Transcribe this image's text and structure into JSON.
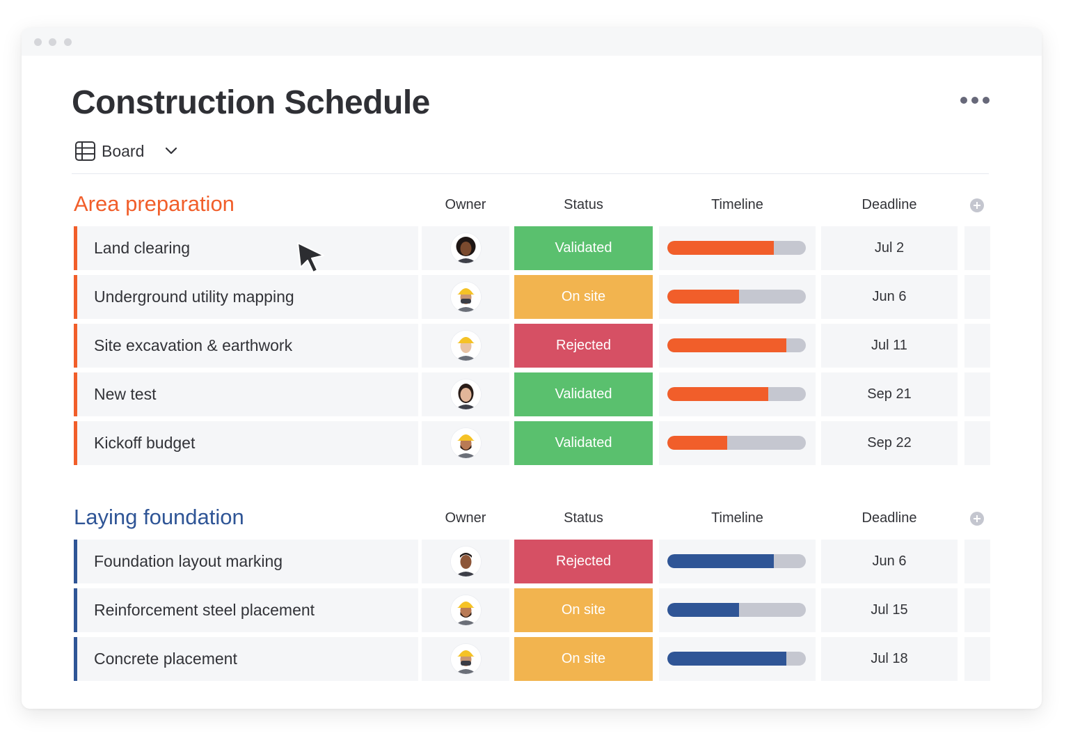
{
  "page": {
    "title": "Construction Schedule",
    "view": {
      "label": "Board",
      "icon": "table-icon"
    }
  },
  "colors": {
    "validated": "#5ac06e",
    "on_site": "#f2b44f",
    "rejected": "#d65064",
    "track": "#c5c7d0",
    "group_orange": "#f15e2a",
    "group_blue": "#2f5596",
    "row_bg": "#f5f6f8"
  },
  "groups": [
    {
      "title": "Area preparation",
      "accent": "#f15e2a",
      "columns": {
        "owner": "Owner",
        "status": "Status",
        "timeline": "Timeline",
        "deadline": "Deadline"
      },
      "items": [
        {
          "name": "Land clearing",
          "owner": "woman-curly-hair",
          "status": "Validated",
          "status_color": "#5ac06e",
          "timeline_progress": 0.77,
          "deadline": "Jul 2"
        },
        {
          "name": "Underground utility mapping",
          "owner": "worker-yellow-helmet-mask",
          "status": "On site",
          "status_color": "#f2b44f",
          "timeline_progress": 0.52,
          "deadline": "Jun 6"
        },
        {
          "name": "Site excavation & earthwork",
          "owner": "worker-yellow-helmet",
          "status": "Rejected",
          "status_color": "#d65064",
          "timeline_progress": 0.86,
          "deadline": "Jul 11"
        },
        {
          "name": "New test",
          "owner": "woman-dark-hair",
          "status": "Validated",
          "status_color": "#5ac06e",
          "timeline_progress": 0.73,
          "deadline": "Sep 21"
        },
        {
          "name": "Kickoff budget",
          "owner": "worker-beard-helmet",
          "status": "Validated",
          "status_color": "#5ac06e",
          "timeline_progress": 0.43,
          "deadline": "Sep 22"
        }
      ]
    },
    {
      "title": "Laying foundation",
      "accent": "#2f5596",
      "columns": {
        "owner": "Owner",
        "status": "Status",
        "timeline": "Timeline",
        "deadline": "Deadline"
      },
      "items": [
        {
          "name": "Foundation layout marking",
          "owner": "man-smiling",
          "status": "Rejected",
          "status_color": "#d65064",
          "timeline_progress": 0.77,
          "deadline": "Jun 6"
        },
        {
          "name": "Reinforcement steel placement",
          "owner": "worker-beard-helmet",
          "status": "On site",
          "status_color": "#f2b44f",
          "timeline_progress": 0.52,
          "deadline": "Jul 15"
        },
        {
          "name": "Concrete placement",
          "owner": "worker-yellow-helmet-mask",
          "status": "On site",
          "status_color": "#f2b44f",
          "timeline_progress": 0.86,
          "deadline": "Jul 18"
        }
      ]
    }
  ]
}
